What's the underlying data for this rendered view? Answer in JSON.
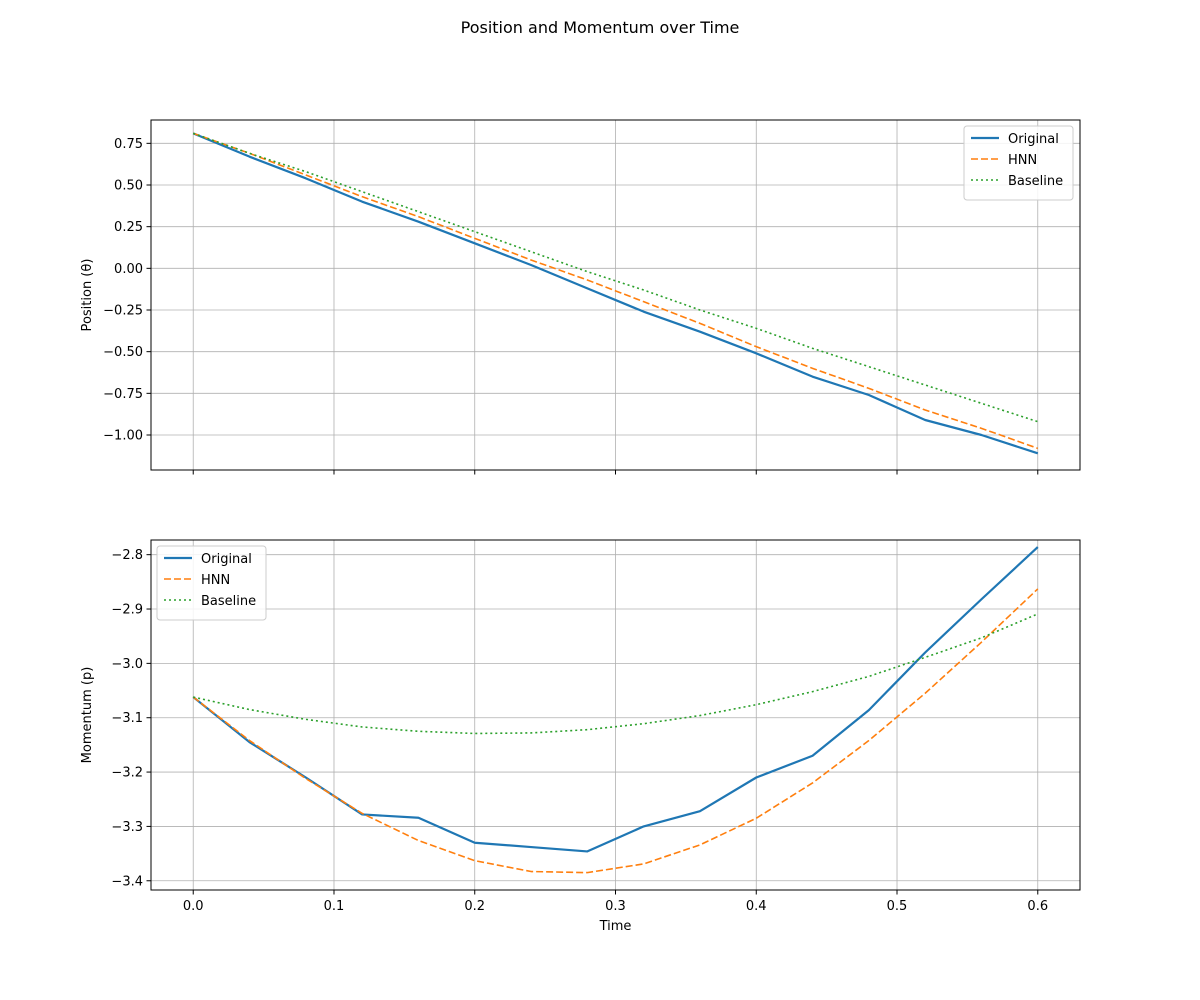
{
  "figure": {
    "suptitle": "Position and Momentum over Time"
  },
  "chart_data": [
    {
      "type": "line",
      "title": "",
      "xlabel": "",
      "ylabel": "Position (θ)",
      "xlim": [
        -0.03,
        0.63
      ],
      "ylim": [
        -1.21,
        0.89
      ],
      "grid": true,
      "legend_position": "top-right",
      "x_ticks": [
        0.0,
        0.1,
        0.2,
        0.3,
        0.4,
        0.5,
        0.6
      ],
      "x_tick_labels": [],
      "y_ticks": [
        0.75,
        0.5,
        0.25,
        0.0,
        -0.25,
        -0.5,
        -0.75,
        -1.0
      ],
      "y_tick_labels": [
        "0.75",
        "0.50",
        "0.25",
        "0.00",
        "−0.25",
        "−0.50",
        "−0.75",
        "−1.00"
      ],
      "x": [
        0.0,
        0.04,
        0.08,
        0.12,
        0.16,
        0.2,
        0.24,
        0.28,
        0.32,
        0.36,
        0.4,
        0.44,
        0.48,
        0.52,
        0.56,
        0.6
      ],
      "series": [
        {
          "name": "Original",
          "color": "#1f77b4",
          "style": "solid",
          "values": [
            0.81,
            0.67,
            0.54,
            0.4,
            0.28,
            0.15,
            0.02,
            -0.12,
            -0.26,
            -0.38,
            -0.51,
            -0.65,
            -0.76,
            -0.91,
            -1.0,
            -1.11
          ]
        },
        {
          "name": "HNN",
          "color": "#ff7f0e",
          "style": "dashed",
          "values": [
            0.81,
            0.69,
            0.56,
            0.43,
            0.31,
            0.18,
            0.05,
            -0.07,
            -0.2,
            -0.33,
            -0.47,
            -0.6,
            -0.72,
            -0.85,
            -0.96,
            -1.08
          ]
        },
        {
          "name": "Baseline",
          "color": "#2ca02c",
          "style": "dotted",
          "values": [
            0.81,
            0.69,
            0.58,
            0.46,
            0.34,
            0.22,
            0.1,
            -0.02,
            -0.13,
            -0.25,
            -0.36,
            -0.48,
            -0.59,
            -0.7,
            -0.81,
            -0.92
          ]
        }
      ]
    },
    {
      "type": "line",
      "title": "",
      "xlabel": "Time",
      "ylabel": "Momentum (p)",
      "xlim": [
        -0.03,
        0.63
      ],
      "ylim": [
        -3.417,
        -2.773
      ],
      "grid": true,
      "legend_position": "top-left",
      "x_ticks": [
        0.0,
        0.1,
        0.2,
        0.3,
        0.4,
        0.5,
        0.6
      ],
      "x_tick_labels": [
        "0.0",
        "0.1",
        "0.2",
        "0.3",
        "0.4",
        "0.5",
        "0.6"
      ],
      "y_ticks": [
        -2.8,
        -2.9,
        -3.0,
        -3.1,
        -3.2,
        -3.3,
        -3.4
      ],
      "y_tick_labels": [
        "−2.8",
        "−2.9",
        "−3.0",
        "−3.1",
        "−3.2",
        "−3.3",
        "−3.4"
      ],
      "x": [
        0.0,
        0.04,
        0.08,
        0.12,
        0.16,
        0.2,
        0.24,
        0.28,
        0.32,
        0.36,
        0.4,
        0.44,
        0.48,
        0.52,
        0.56,
        0.6
      ],
      "series": [
        {
          "name": "Original",
          "color": "#1f77b4",
          "style": "solid",
          "values": [
            -3.062,
            -3.145,
            -3.21,
            -3.278,
            -3.284,
            -3.33,
            -3.338,
            -3.346,
            -3.3,
            -3.272,
            -3.21,
            -3.17,
            -3.086,
            -2.98,
            -2.882,
            -2.786
          ]
        },
        {
          "name": "HNN",
          "color": "#ff7f0e",
          "style": "dashed",
          "values": [
            -3.062,
            -3.142,
            -3.212,
            -3.276,
            -3.326,
            -3.363,
            -3.383,
            -3.385,
            -3.369,
            -3.334,
            -3.285,
            -3.22,
            -3.142,
            -3.055,
            -2.961,
            -2.863
          ]
        },
        {
          "name": "Baseline",
          "color": "#2ca02c",
          "style": "dotted",
          "values": [
            -3.062,
            -3.085,
            -3.103,
            -3.117,
            -3.125,
            -3.129,
            -3.128,
            -3.122,
            -3.111,
            -3.096,
            -3.076,
            -3.052,
            -3.024,
            -2.989,
            -2.953,
            -2.909
          ]
        }
      ]
    }
  ]
}
